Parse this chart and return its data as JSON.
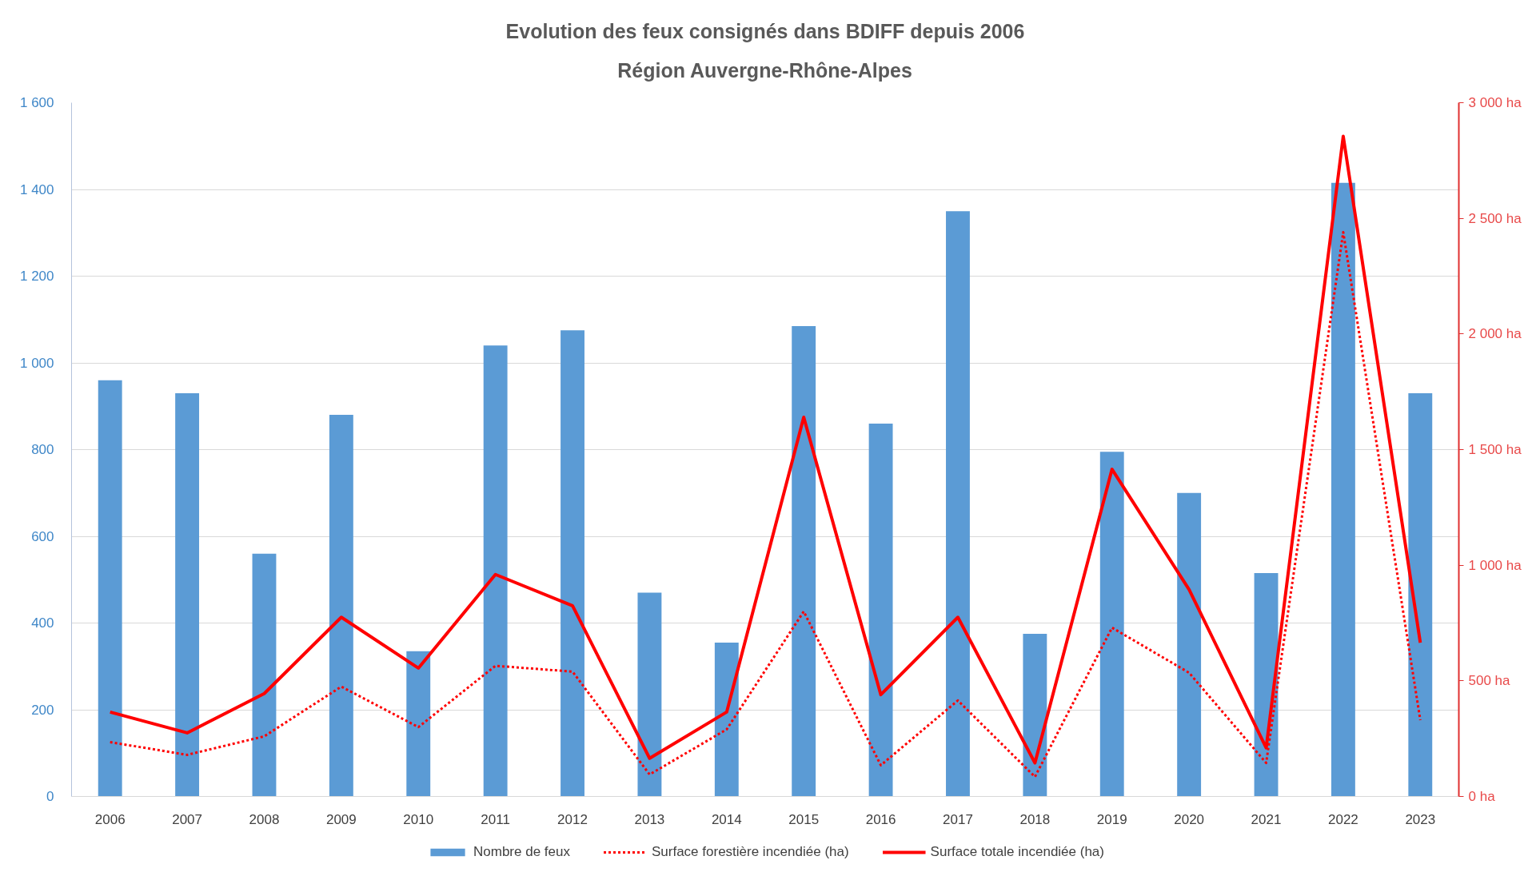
{
  "chart_data": {
    "type": "bar",
    "title": "Evolution des feux consignés dans BDIFF depuis 2006",
    "subtitle": "Région Auvergne-Rhône-Alpes",
    "categories": [
      "2006",
      "2007",
      "2008",
      "2009",
      "2010",
      "2011",
      "2012",
      "2013",
      "2014",
      "2015",
      "2016",
      "2017",
      "2018",
      "2019",
      "2020",
      "2021",
      "2022",
      "2023"
    ],
    "series": [
      {
        "name": "Nombre de feux",
        "color": "#5b9bd5",
        "values": [
          960,
          930,
          560,
          880,
          335,
          1040,
          1075,
          470,
          355,
          1085,
          860,
          1350,
          375,
          795,
          700,
          515,
          1415,
          930
        ]
      },
      {
        "name": "Surface forestière incendiée (ha)",
        "type": "line",
        "axis": "y2",
        "line_style": "dotted",
        "color": "#ff0000",
        "values": [
          235,
          180,
          260,
          475,
          300,
          565,
          540,
          95,
          290,
          800,
          135,
          415,
          85,
          730,
          535,
          145,
          2440,
          330
        ]
      },
      {
        "name": "Surface totale incendiée (ha)",
        "type": "line",
        "axis": "y2",
        "line_style": "solid",
        "color": "#ff0000",
        "values": [
          365,
          275,
          445,
          775,
          555,
          960,
          825,
          165,
          365,
          1640,
          440,
          775,
          145,
          1415,
          895,
          210,
          2855,
          665
        ]
      }
    ],
    "ylim": [
      0,
      1600
    ],
    "yticks": [
      0,
      200,
      400,
      600,
      800,
      {
        "value": 1000,
        "label": "1 000"
      },
      {
        "value": 1200,
        "label": "1 200"
      },
      {
        "value": 1400,
        "label": "1 400"
      },
      {
        "value": 1600,
        "label": "1 600"
      }
    ],
    "y2lim": [
      0,
      3000
    ],
    "y2ticks": [
      {
        "value": 0,
        "label": "0 ha"
      },
      {
        "value": 500,
        "label": "500 ha"
      },
      {
        "value": 1000,
        "label": "1 000 ha"
      },
      {
        "value": 1500,
        "label": "1 500 ha"
      },
      {
        "value": 2000,
        "label": "2 000 ha"
      },
      {
        "value": 2500,
        "label": "2 500 ha"
      },
      {
        "value": 3000,
        "label": "3 000 ha"
      }
    ],
    "grid": "y",
    "legend": "bottom"
  }
}
